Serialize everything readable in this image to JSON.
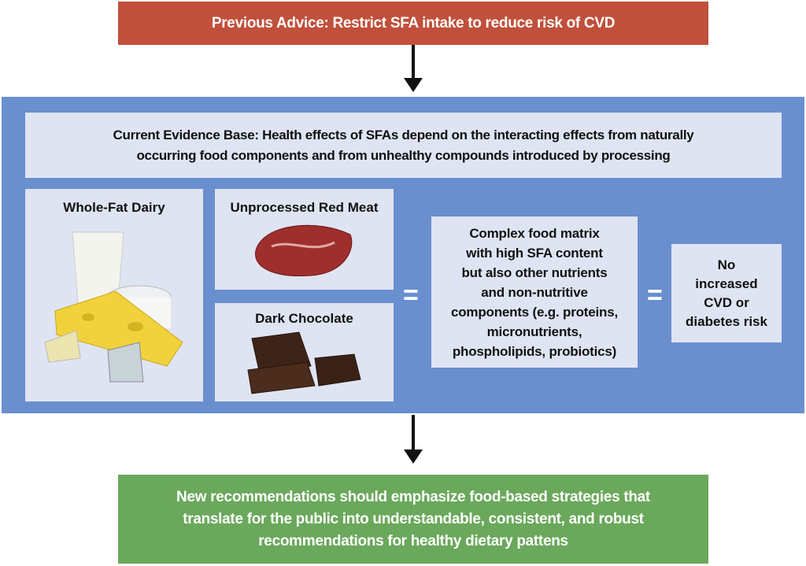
{
  "header": {
    "title": "Previous Advice: Restrict SFA intake to reduce risk of CVD"
  },
  "evidence": {
    "lines": [
      "Current Evidence Base: Health effects of SFAs depend on the interacting effects from naturally",
      "occurring food components and from unhealthy compounds introduced by processing"
    ]
  },
  "foods": [
    {
      "label": "Whole-Fat Dairy"
    },
    {
      "label": "Unprocessed Red Meat"
    },
    {
      "label": "Dark Chocolate"
    }
  ],
  "equals": [
    "=",
    "="
  ],
  "matrix": {
    "lines": [
      "Complex food matrix",
      "with high SFA content",
      "but also other nutrients",
      "and non-nutritive",
      "components (e.g. proteins,",
      "micronutrients,",
      "phospholipids, probiotics)"
    ]
  },
  "outcome": {
    "lines": [
      "No",
      "increased",
      "CVD or",
      "diabetes risk"
    ]
  },
  "recommendation": {
    "lines": [
      "New recommendations should emphasize food-based strategies that",
      "translate for the public into understandable, consistent, and robust",
      "recommendations for healthy dietary pattens"
    ]
  }
}
